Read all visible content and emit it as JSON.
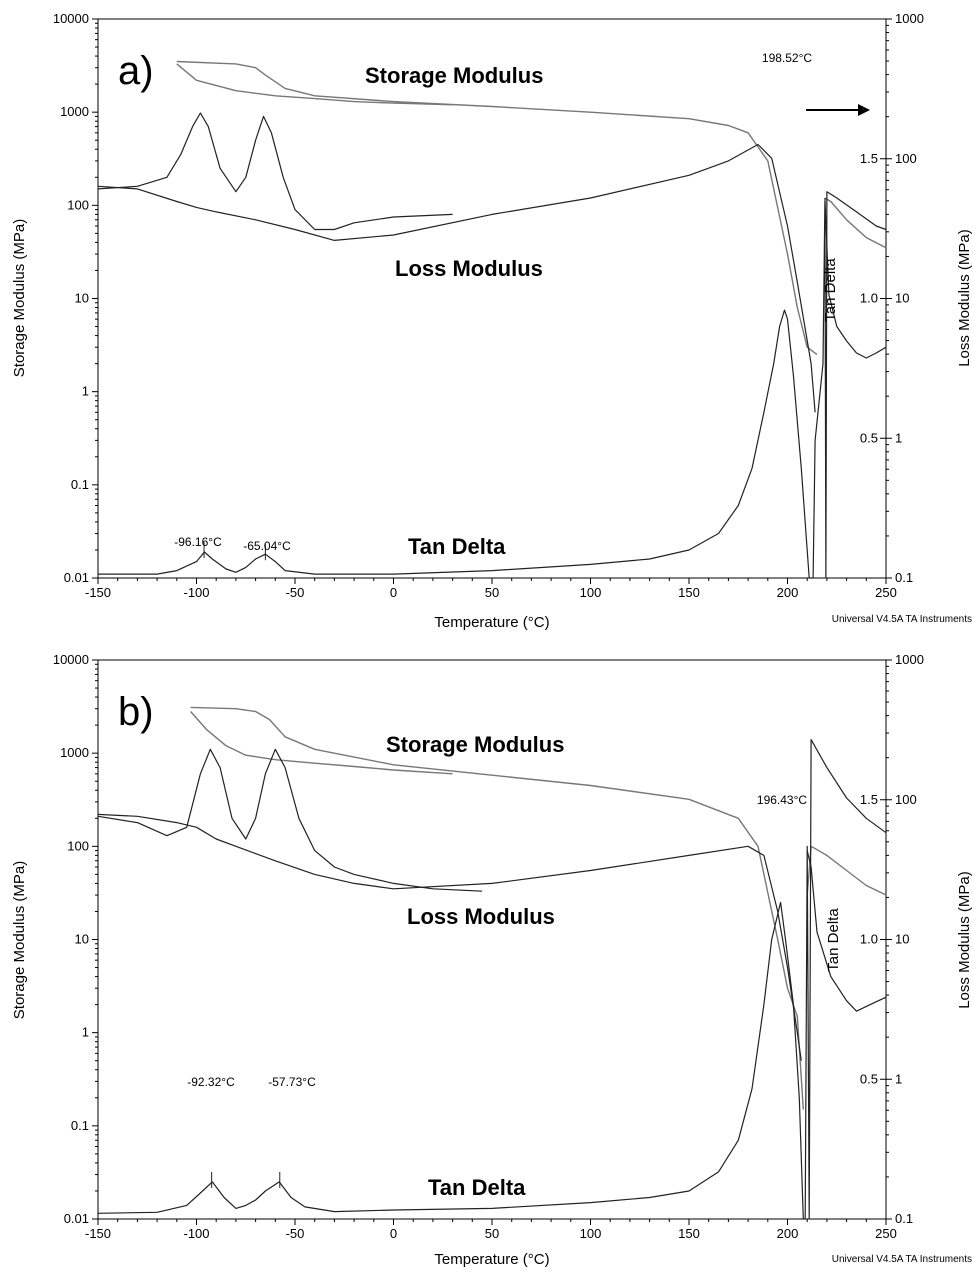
{
  "colors": {
    "dark": "#222222",
    "gray": "#777777",
    "axis": "#000000"
  },
  "footer": "Universal V4.5A TA Instruments",
  "chart_data": [
    {
      "type": "line",
      "panel_label": "a)",
      "xlabel": "Temperature (°C)",
      "ylabel_left": "Storage Modulus (MPa)",
      "ylabel_right": "Loss Modulus (MPa)",
      "xlim": [
        -150,
        250
      ],
      "ylim_left": [
        0.01,
        10000
      ],
      "ylim_right": [
        0.1,
        1000
      ],
      "yscale": "log",
      "x_ticks": [
        "-150",
        "-100",
        "-50",
        "0",
        "50",
        "100",
        "150",
        "200",
        "250"
      ],
      "y_left_ticks": [
        "0.01",
        "0.1",
        "1",
        "10",
        "100",
        "1000",
        "10000"
      ],
      "y_right_ticks": [
        "0.1",
        "1",
        "10",
        "100",
        "1000"
      ],
      "tan_delta_ticks": [
        "0.5",
        "1.0",
        "1.5"
      ],
      "annotations": {
        "storage": "Storage Modulus",
        "loss": "Loss Modulus",
        "tan": "Tan Delta",
        "tan_vertical": "Tan Delta",
        "peak_high": "198.52°C",
        "peak1": "-96.16°C",
        "peak2": "-65.04°C"
      },
      "series": [
        {
          "role": "storage_heat",
          "color": "gray",
          "x": [
            -110,
            -80,
            -70,
            -65,
            -55,
            -40,
            0,
            50,
            100,
            150,
            170,
            180,
            190,
            200,
            205,
            210,
            215
          ],
          "y": [
            3500,
            3300,
            3000,
            2500,
            1800,
            1500,
            1300,
            1150,
            1000,
            850,
            720,
            600,
            300,
            30,
            8,
            3,
            2.5
          ]
        },
        {
          "role": "storage_cool",
          "color": "gray",
          "x": [
            -110,
            -100,
            -80,
            -60,
            -40,
            -20,
            0,
            30
          ],
          "y": [
            3300,
            2200,
            1700,
            1500,
            1400,
            1300,
            1250,
            1200
          ]
        },
        {
          "role": "storage_tail",
          "color": "gray",
          "x": [
            219,
            222,
            230,
            240,
            250
          ],
          "y": [
            120,
            110,
            70,
            45,
            35
          ]
        },
        {
          "role": "loss_heat",
          "color": "dark",
          "x": [
            -150,
            -130,
            -110,
            -100,
            -90,
            -70,
            -50,
            -30,
            0,
            50,
            100,
            150,
            170,
            185,
            192,
            200,
            205,
            212,
            214
          ],
          "y": [
            160,
            150,
            110,
            95,
            85,
            70,
            55,
            42,
            48,
            80,
            120,
            210,
            300,
            450,
            320,
            60,
            15,
            2,
            0.6
          ]
        },
        {
          "role": "loss_cool",
          "color": "dark",
          "x": [
            -150,
            -130,
            -115,
            -108,
            -102,
            -98,
            -94,
            -88,
            -80,
            -75,
            -70,
            -66,
            -62,
            -56,
            -50,
            -40,
            -30,
            -20,
            0,
            30
          ],
          "y": [
            150,
            160,
            200,
            350,
            700,
            980,
            700,
            250,
            140,
            200,
            500,
            900,
            600,
            200,
            90,
            55,
            55,
            65,
            75,
            80
          ]
        },
        {
          "role": "loss_tail",
          "color": "dark",
          "x": [
            219,
            221,
            225,
            230,
            235,
            240,
            245,
            250
          ],
          "y": [
            120,
            11,
            5,
            3.5,
            2.6,
            2.3,
            2.6,
            3
          ]
        },
        {
          "role": "tan_delta",
          "color": "dark",
          "x": [
            -150,
            -120,
            -110,
            -100,
            -96,
            -92,
            -85,
            -80,
            -75,
            -70,
            -65,
            -60,
            -55,
            -40,
            0,
            50,
            100,
            130,
            150,
            165,
            175,
            182,
            188,
            193,
            196,
            198.5,
            200,
            203,
            207,
            211,
            213,
            214,
            218,
            219,
            219.5,
            220,
            225,
            235,
            245,
            250
          ],
          "y": [
            0.011,
            0.011,
            0.012,
            0.015,
            0.019,
            0.016,
            0.0125,
            0.0115,
            0.013,
            0.016,
            0.018,
            0.015,
            0.012,
            0.011,
            0.011,
            0.012,
            0.014,
            0.016,
            0.02,
            0.03,
            0.06,
            0.15,
            0.6,
            2,
            5,
            7.5,
            6,
            1.5,
            0.15,
            0.01,
            0.01,
            0.3,
            2,
            110,
            0.01,
            140,
            120,
            85,
            60,
            55
          ]
        }
      ]
    },
    {
      "type": "line",
      "panel_label": "b)",
      "xlabel": "Temperature (°C)",
      "ylabel_left": "Storage Modulus (MPa)",
      "ylabel_right": "Loss Modulus (MPa)",
      "xlim": [
        -150,
        250
      ],
      "ylim_left": [
        0.01,
        10000
      ],
      "ylim_right": [
        0.1,
        1000
      ],
      "yscale": "log",
      "x_ticks": [
        "-150",
        "-100",
        "-50",
        "0",
        "50",
        "100",
        "150",
        "200",
        "250"
      ],
      "y_left_ticks": [
        "0.01",
        "0.1",
        "1",
        "10",
        "100",
        "1000",
        "10000"
      ],
      "y_right_ticks": [
        "0.1",
        "1",
        "10",
        "100",
        "1000"
      ],
      "tan_delta_ticks": [
        "0.5",
        "1.0",
        "1.5"
      ],
      "annotations": {
        "storage": "Storage Modulus",
        "loss": "Loss Modulus",
        "tan": "Tan Delta",
        "tan_vertical": "Tan Delta",
        "peak_high": "196.43°C",
        "peak1": "-92.32°C",
        "peak2": "-57.73°C"
      },
      "series": [
        {
          "role": "storage_heat",
          "color": "gray",
          "x": [
            -103,
            -80,
            -70,
            -63,
            -55,
            -40,
            0,
            50,
            100,
            150,
            175,
            185,
            195,
            200,
            205,
            208
          ],
          "y": [
            3100,
            3000,
            2800,
            2300,
            1500,
            1100,
            750,
            580,
            450,
            320,
            200,
            100,
            10,
            3,
            1.5,
            0.15
          ]
        },
        {
          "role": "storage_cool",
          "color": "gray",
          "x": [
            -103,
            -95,
            -85,
            -75,
            -60,
            -40,
            -20,
            0,
            30
          ],
          "y": [
            2800,
            1800,
            1200,
            950,
            850,
            780,
            720,
            660,
            600
          ]
        },
        {
          "role": "storage_tail",
          "color": "gray",
          "x": [
            210,
            212,
            220,
            230,
            240,
            250
          ],
          "y": [
            30,
            100,
            80,
            55,
            38,
            30
          ]
        },
        {
          "role": "loss_heat",
          "color": "dark",
          "x": [
            -150,
            -130,
            -110,
            -100,
            -90,
            -80,
            -60,
            -40,
            -20,
            0,
            50,
            100,
            150,
            180,
            188,
            195,
            200,
            205,
            207
          ],
          "y": [
            220,
            210,
            180,
            160,
            120,
            100,
            70,
            50,
            40,
            35,
            40,
            55,
            80,
            100,
            80,
            20,
            5,
            1,
            0.5
          ]
        },
        {
          "role": "loss_cool",
          "color": "dark",
          "x": [
            -150,
            -130,
            -115,
            -105,
            -98,
            -93,
            -88,
            -82,
            -75,
            -70,
            -65,
            -60,
            -55,
            -48,
            -40,
            -30,
            -20,
            0,
            20,
            45
          ],
          "y": [
            210,
            180,
            130,
            160,
            600,
            1100,
            700,
            200,
            120,
            200,
            600,
            1100,
            700,
            200,
            90,
            60,
            50,
            40,
            35,
            33
          ]
        },
        {
          "role": "loss_tail",
          "color": "dark",
          "x": [
            210,
            212,
            215,
            222,
            230,
            235,
            242,
            250
          ],
          "y": [
            90,
            60,
            12,
            4,
            2.2,
            1.7,
            2,
            2.4
          ]
        },
        {
          "role": "tan_delta",
          "color": "dark",
          "x": [
            -150,
            -120,
            -105,
            -98,
            -92,
            -86,
            -80,
            -75,
            -70,
            -65,
            -58,
            -52,
            -45,
            -30,
            0,
            50,
            100,
            130,
            150,
            165,
            175,
            182,
            188,
            192,
            196.5,
            199,
            203,
            206,
            208,
            209,
            210,
            211,
            212,
            220,
            230,
            240,
            250
          ],
          "y": [
            0.0115,
            0.0118,
            0.014,
            0.019,
            0.025,
            0.017,
            0.013,
            0.014,
            0.016,
            0.02,
            0.025,
            0.017,
            0.0135,
            0.012,
            0.0125,
            0.013,
            0.015,
            0.017,
            0.02,
            0.032,
            0.07,
            0.25,
            2,
            10,
            25,
            10,
            2,
            0.2,
            0.01,
            0.01,
            100,
            0.01,
            1400,
            700,
            330,
            200,
            140
          ]
        }
      ]
    }
  ]
}
